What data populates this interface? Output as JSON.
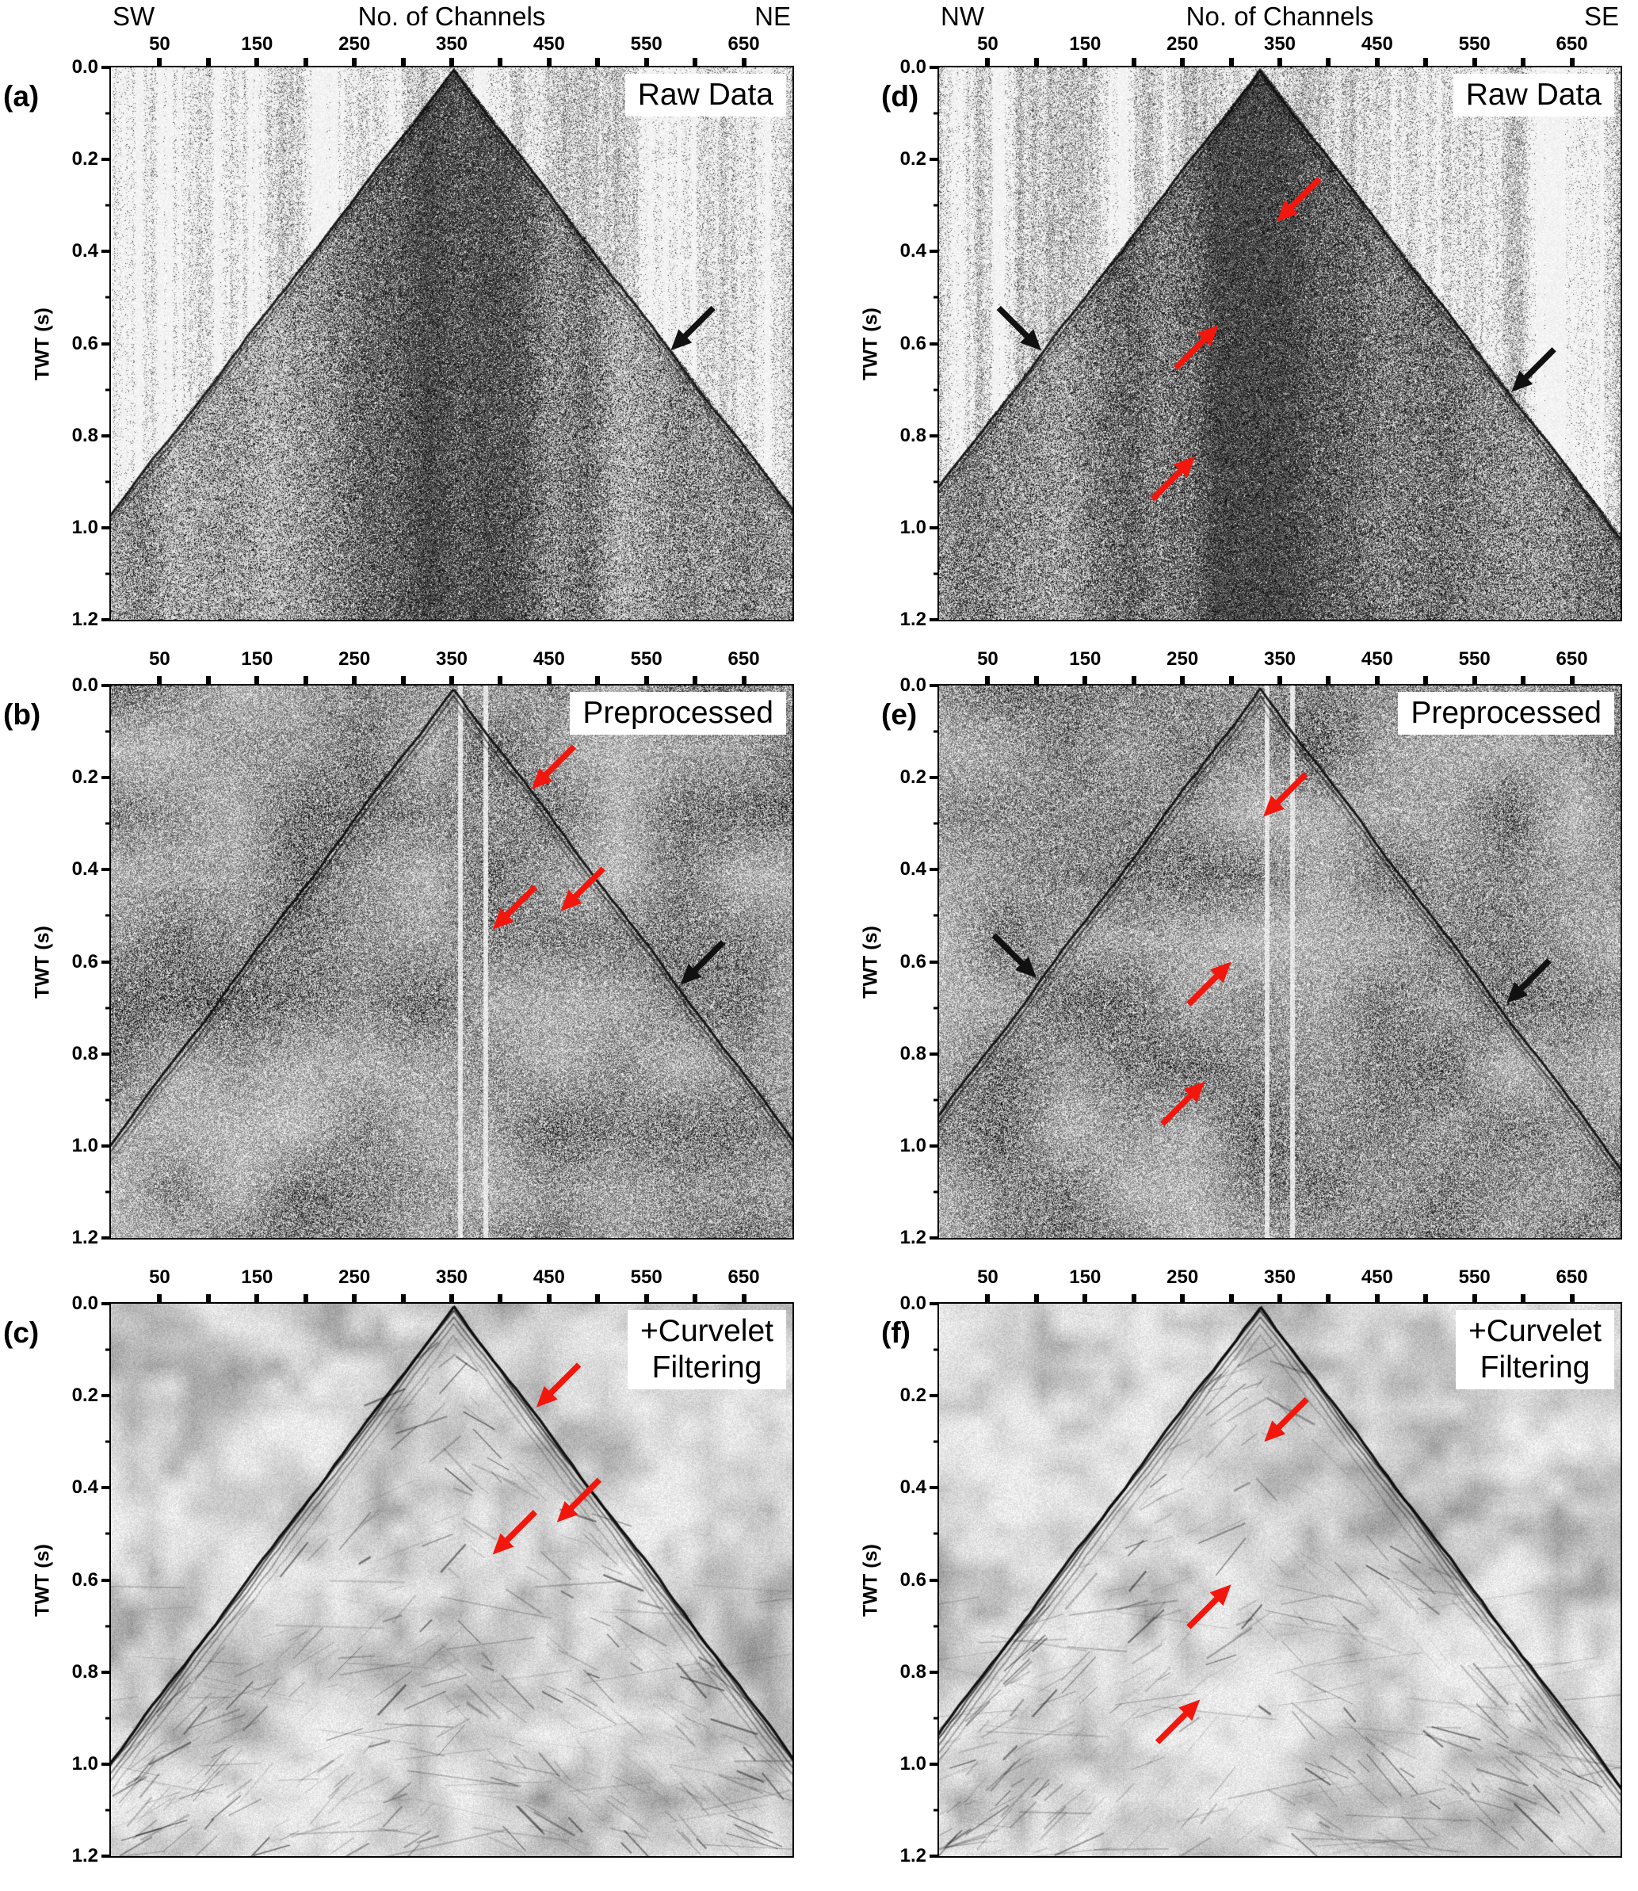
{
  "chart_data": {
    "type": "heatmap",
    "subtype": "seismic-shot-gathers",
    "description": "Six-panel figure of seismic common-shot gathers at three processing stages (Raw Data, Preprocessed, +Curvelet Filtering). Left column is a SW-NE line, right column a NW-SE line. Each panel shows an inverted-V first-arrival pattern with its apex near the center channel at 0 s TWT; noise decreases from top row to bottom row. Arrows mark first-arrival and reflection features.",
    "x_axis": {
      "title": "No. of Channels",
      "tick_labels": [
        "50",
        "150",
        "250",
        "350",
        "450",
        "550",
        "650"
      ],
      "range": [
        0,
        700
      ],
      "minor_tick_step": 50
    },
    "y_axis": {
      "title": "TWT (s)",
      "tick_labels": [
        "0.0",
        "0.2",
        "0.4",
        "0.6",
        "0.8",
        "1.0",
        "1.2"
      ],
      "range": [
        0,
        1.2
      ]
    },
    "annotation_colors": {
      "black": "#111111",
      "red": "#f2170d"
    },
    "panels": [
      {
        "letter": "(a)",
        "dir_left": "SW",
        "dir_right": "NE",
        "label": "Raw Data",
        "label2": "",
        "stage": "raw",
        "apex_channel": 352,
        "annotations": [
          {
            "color": "black",
            "channel": 575,
            "twt": 0.615,
            "dir": "down-left"
          }
        ]
      },
      {
        "letter": "(b)",
        "label": "Preprocessed",
        "label2": "",
        "stage": "preprocessed",
        "apex_channel": 352,
        "annotations": [
          {
            "color": "red",
            "channel": 432,
            "twt": 0.225,
            "dir": "down-left"
          },
          {
            "color": "red",
            "channel": 392,
            "twt": 0.53,
            "dir": "down-left"
          },
          {
            "color": "red",
            "channel": 462,
            "twt": 0.49,
            "dir": "down-left"
          },
          {
            "color": "black",
            "channel": 585,
            "twt": 0.65,
            "dir": "down-left"
          }
        ]
      },
      {
        "letter": "(c)",
        "label": "+Curvelet",
        "label2": "Filtering",
        "stage": "curvelet",
        "apex_channel": 352,
        "annotations": [
          {
            "color": "red",
            "channel": 437,
            "twt": 0.225,
            "dir": "down-left"
          },
          {
            "color": "red",
            "channel": 392,
            "twt": 0.545,
            "dir": "down-left"
          },
          {
            "color": "red",
            "channel": 458,
            "twt": 0.475,
            "dir": "down-left"
          }
        ]
      },
      {
        "letter": "(d)",
        "dir_left": "NW",
        "dir_right": "SE",
        "label": "Raw Data",
        "label2": "",
        "stage": "raw",
        "apex_channel": 330,
        "annotations": [
          {
            "color": "red",
            "channel": 347,
            "twt": 0.335,
            "dir": "down-left"
          },
          {
            "color": "black",
            "channel": 105,
            "twt": 0.615,
            "dir": "down-right"
          },
          {
            "color": "red",
            "channel": 287,
            "twt": 0.56,
            "dir": "up-right"
          },
          {
            "color": "red",
            "channel": 263,
            "twt": 0.845,
            "dir": "up-right"
          },
          {
            "color": "black",
            "channel": 588,
            "twt": 0.705,
            "dir": "down-left"
          }
        ]
      },
      {
        "letter": "(e)",
        "label": "Preprocessed",
        "label2": "",
        "stage": "preprocessed",
        "apex_channel": 330,
        "annotations": [
          {
            "color": "red",
            "channel": 333,
            "twt": 0.285,
            "dir": "down-left"
          },
          {
            "color": "black",
            "channel": 100,
            "twt": 0.635,
            "dir": "down-right"
          },
          {
            "color": "red",
            "channel": 300,
            "twt": 0.6,
            "dir": "up-right"
          },
          {
            "color": "red",
            "channel": 273,
            "twt": 0.86,
            "dir": "up-right"
          },
          {
            "color": "black",
            "channel": 583,
            "twt": 0.69,
            "dir": "down-left"
          }
        ]
      },
      {
        "letter": "(f)",
        "label": "+Curvelet",
        "label2": "Filtering",
        "stage": "curvelet",
        "apex_channel": 330,
        "annotations": [
          {
            "color": "red",
            "channel": 334,
            "twt": 0.3,
            "dir": "down-left"
          },
          {
            "color": "red",
            "channel": 300,
            "twt": 0.61,
            "dir": "up-right"
          },
          {
            "color": "red",
            "channel": 268,
            "twt": 0.86,
            "dir": "up-right"
          }
        ]
      }
    ]
  }
}
